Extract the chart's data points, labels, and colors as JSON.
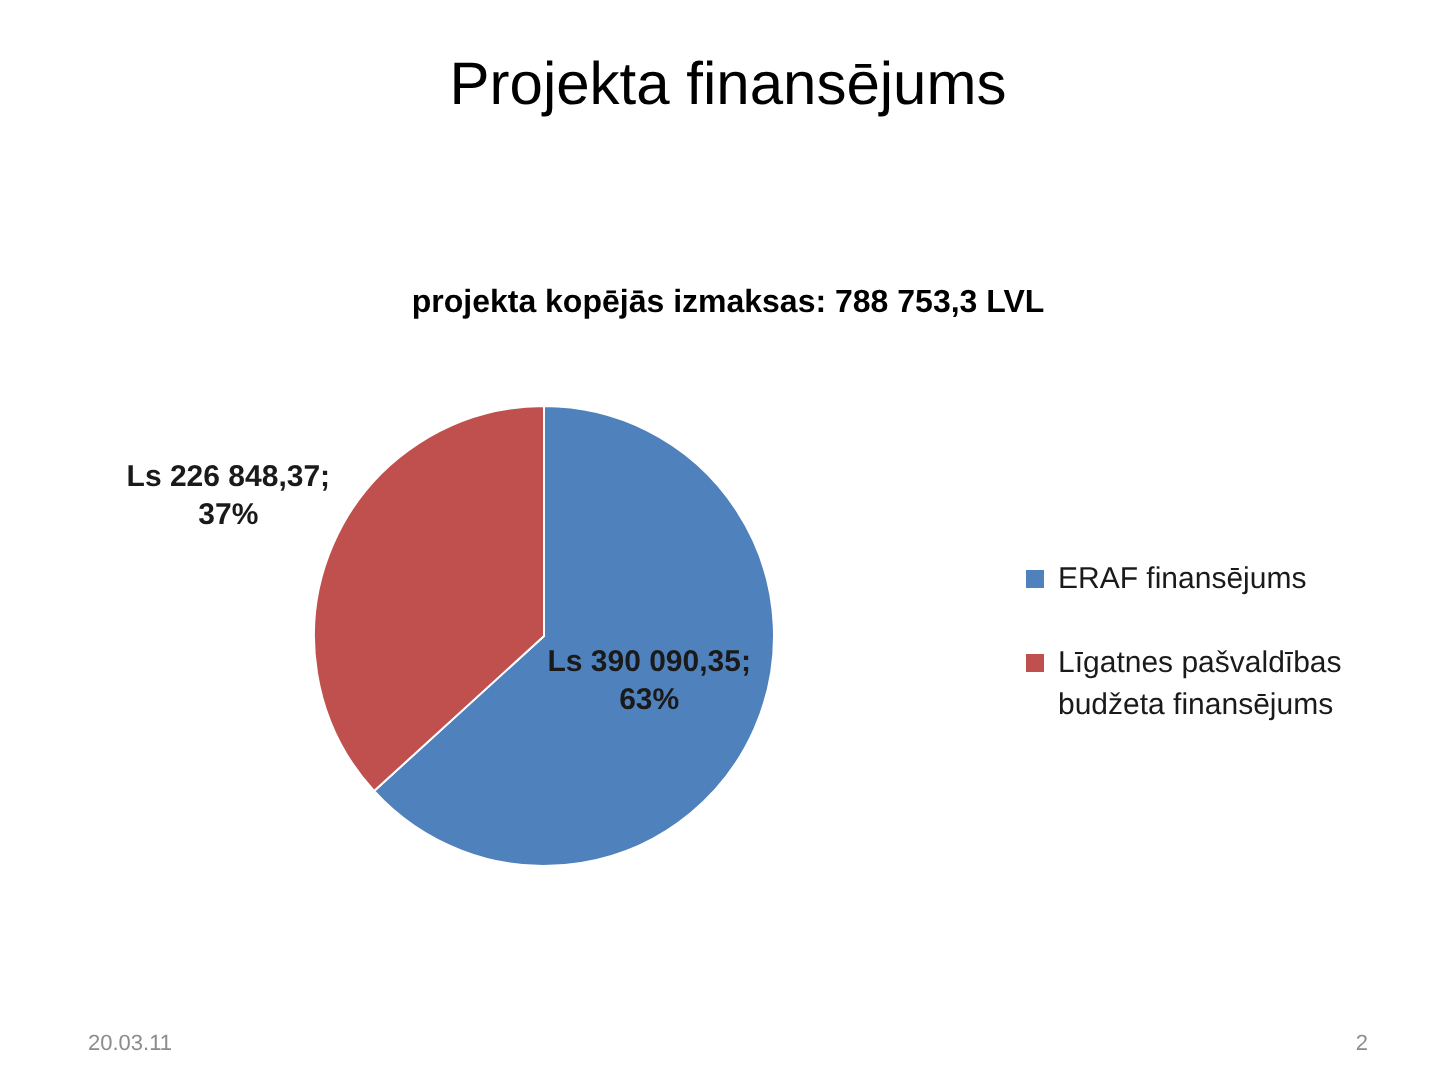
{
  "chart_data": {
    "type": "pie",
    "title": "Projekta finansējums",
    "subtitle": "projekta kopējās izmaksas: 788 753,3 LVL",
    "categories": [
      "ERAF finansējums",
      "Līgatnes pašvaldības budžeta finansējums"
    ],
    "values": [
      390090.35,
      226848.37
    ],
    "colors": [
      "#4f81bd",
      "#c0504d"
    ],
    "value_labels": [
      "Ls 390 090,35;\n63%",
      "Ls 226 848,37;\n37%"
    ],
    "legend": "right",
    "annotations": [
      "20.03.11",
      "2"
    ]
  }
}
